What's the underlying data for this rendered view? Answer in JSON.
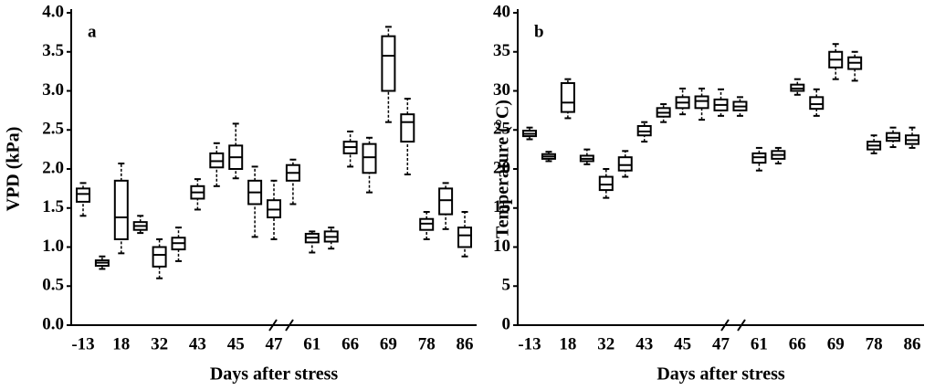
{
  "chart_data": [
    {
      "type": "box",
      "panel_label": "a",
      "y_label": "VPD (kPa)",
      "x_label": "Days after stress",
      "categories": [
        "-13",
        null,
        "18",
        null,
        "32",
        null,
        "43",
        null,
        "45",
        null,
        "47",
        null,
        "61",
        null,
        "66",
        null,
        "69",
        null,
        "78",
        null,
        "86"
      ],
      "min": [
        1.4,
        0.72,
        0.92,
        1.18,
        0.6,
        0.82,
        1.48,
        1.78,
        1.88,
        1.13,
        1.1,
        1.55,
        0.93,
        0.98,
        2.03,
        1.7,
        2.6,
        1.93,
        1.1,
        1.23,
        0.88
      ],
      "q1": [
        1.58,
        0.76,
        1.1,
        1.22,
        0.75,
        0.97,
        1.62,
        2.02,
        2.0,
        1.55,
        1.38,
        1.85,
        1.06,
        1.07,
        2.2,
        1.95,
        3.0,
        2.35,
        1.22,
        1.42,
        1.0
      ],
      "median": [
        1.68,
        0.8,
        1.38,
        1.27,
        0.9,
        1.05,
        1.7,
        2.1,
        2.15,
        1.7,
        1.48,
        1.95,
        1.12,
        1.13,
        2.28,
        2.15,
        3.45,
        2.6,
        1.3,
        1.6,
        1.15
      ],
      "q3": [
        1.75,
        0.83,
        1.85,
        1.32,
        1.0,
        1.12,
        1.78,
        2.2,
        2.3,
        1.85,
        1.6,
        2.05,
        1.17,
        1.2,
        2.35,
        2.32,
        3.7,
        2.7,
        1.36,
        1.75,
        1.25
      ],
      "max": [
        1.82,
        0.88,
        2.07,
        1.4,
        1.1,
        1.25,
        1.87,
        2.33,
        2.58,
        2.03,
        1.85,
        2.12,
        1.2,
        1.25,
        2.48,
        2.4,
        3.82,
        2.9,
        1.45,
        1.82,
        1.45
      ],
      "ylim": [
        0,
        4
      ],
      "yticks": [
        {
          "value": 0,
          "label": "0.0"
        },
        {
          "value": 0.5,
          "label": "0.5"
        },
        {
          "value": 1,
          "label": "1.0"
        },
        {
          "value": 1.5,
          "label": "1.5"
        },
        {
          "value": 2,
          "label": "2.0"
        },
        {
          "value": 2.5,
          "label": "2.5"
        },
        {
          "value": 3,
          "label": "3.0"
        },
        {
          "value": 3.5,
          "label": "3.5"
        },
        {
          "value": 4,
          "label": "4.0"
        }
      ],
      "color": "#000000"
    },
    {
      "type": "box",
      "panel_label": "b",
      "y_label": "Temperature (°C)",
      "x_label": "Days after stress",
      "categories": [
        "-13",
        null,
        "18",
        null,
        "32",
        null,
        "43",
        null,
        "45",
        null,
        "47",
        null,
        "61",
        null,
        "66",
        null,
        "69",
        null,
        "78",
        null,
        "86"
      ],
      "min": [
        23.8,
        21,
        26.5,
        20.6,
        16.3,
        19,
        23.5,
        26,
        27,
        26.3,
        26.8,
        26.8,
        19.8,
        20.7,
        29.5,
        26.8,
        31.5,
        31.3,
        22,
        22.8,
        22.7
      ],
      "q1": [
        24.2,
        21.3,
        27.3,
        21,
        17.3,
        19.8,
        24.3,
        26.7,
        27.8,
        27.8,
        27.5,
        27.5,
        20.8,
        21.3,
        30,
        27.7,
        33,
        32.8,
        22.5,
        23.6,
        23.2
      ],
      "median": [
        24.5,
        21.6,
        28.5,
        21.3,
        18,
        20.5,
        24.8,
        27.2,
        28.5,
        28.7,
        28.2,
        28,
        21.5,
        21.8,
        30.3,
        28.3,
        34,
        33.6,
        23,
        24,
        23.7
      ],
      "q3": [
        24.9,
        21.9,
        31,
        21.7,
        19,
        21.5,
        25.5,
        27.8,
        29.2,
        29.3,
        28.9,
        28.6,
        22,
        22.3,
        30.8,
        29.2,
        35,
        34.3,
        23.5,
        24.6,
        24.3
      ],
      "max": [
        25.3,
        22.2,
        31.5,
        22.5,
        20,
        22.3,
        26,
        28.3,
        30.3,
        30.3,
        30.2,
        29.2,
        22.7,
        22.7,
        31.5,
        30.2,
        36,
        35,
        24.3,
        25.3,
        25.3
      ],
      "ylim": [
        0,
        40
      ],
      "yticks": [
        0,
        5,
        10,
        15,
        20,
        25,
        30,
        35,
        40
      ],
      "color": "#000000"
    }
  ]
}
